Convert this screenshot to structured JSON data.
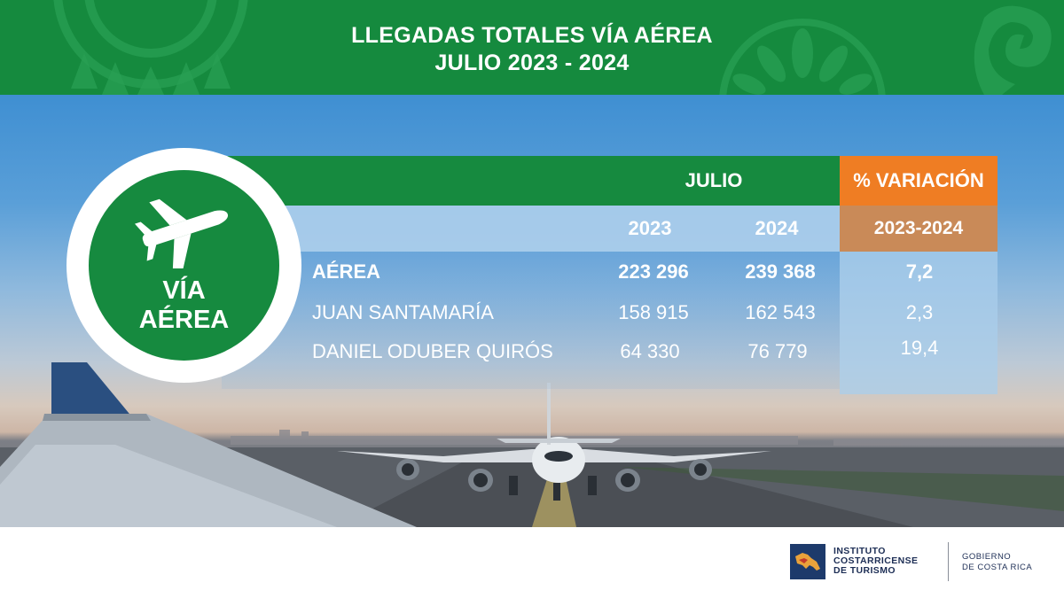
{
  "header": {
    "title_line1": "LLEGADAS TOTALES VÍA AÉREA",
    "title_line2": "JULIO 2023 - 2024"
  },
  "badge": {
    "icon": "airplane-icon",
    "line1": "VÍA",
    "line2": "AÉREA"
  },
  "table": {
    "group_header": "JULIO",
    "variation_header": "% VARIACIÓN",
    "years": [
      "2023",
      "2024"
    ],
    "variation_period": "2023-2024",
    "rows": [
      {
        "label": "AÉREA",
        "v2023": "223 296",
        "v2024": "239 368",
        "variation": "7,2"
      },
      {
        "label": "JUAN SANTAMARÍA",
        "v2023": "158 915",
        "v2024": "162 543",
        "variation": "2,3"
      },
      {
        "label": "DANIEL ODUBER QUIRÓS",
        "v2023": "64 330",
        "v2024": "76 779",
        "variation": "19,4"
      }
    ]
  },
  "footer": {
    "ict_line1": "INSTITUTO",
    "ict_line2": "COSTARRICENSE",
    "ict_line3": "DE TURISMO",
    "gob_line1": "GOBIERNO",
    "gob_line2": "DE COSTA RICA"
  },
  "colors": {
    "green": "#158a3e",
    "orange": "#ef7d23",
    "tan": "#c98a58",
    "navy": "#1d3a6b"
  }
}
